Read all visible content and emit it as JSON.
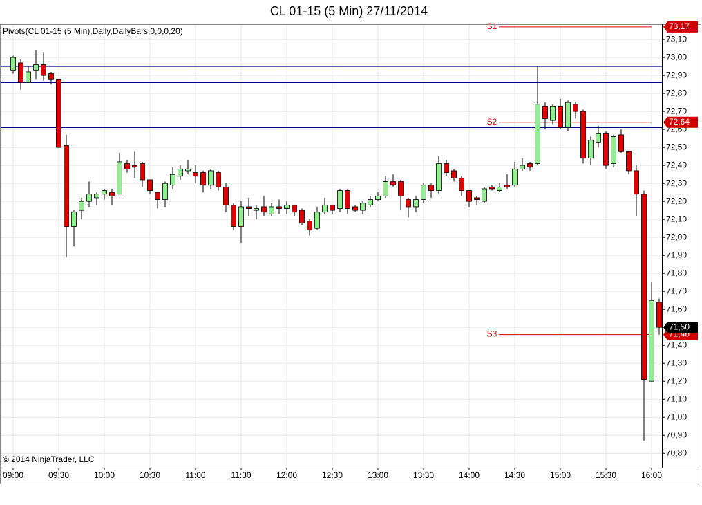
{
  "chart_data": {
    "type": "candlestick",
    "title": "CL 01-15 (5 Min)  27/11/2014",
    "subtitle": "Pivots(CL 01-15 (5 Min),Daily,DailyBars,0,0,0,20)",
    "annotation": "© 2014 NinjaTrader, LLC",
    "categories": [
      "09:00",
      null,
      null,
      null,
      null,
      null,
      "09:30",
      null,
      null,
      null,
      null,
      null,
      "10:00",
      null,
      null,
      null,
      null,
      null,
      "10:30",
      null,
      null,
      null,
      null,
      null,
      "11:00",
      null,
      null,
      null,
      null,
      null,
      "11:30",
      null,
      null,
      null,
      null,
      null,
      "12:00",
      null,
      null,
      null,
      null,
      null,
      "12:30",
      null,
      null,
      null,
      null,
      null,
      "13:00",
      null,
      null,
      null,
      null,
      null,
      "13:30",
      null,
      null,
      null,
      null,
      null,
      "14:00",
      null,
      null,
      null,
      null,
      null,
      "14:30",
      null,
      null,
      null,
      null,
      null,
      "15:00",
      null,
      null,
      null,
      null,
      null,
      "15:30",
      null,
      null,
      null,
      null,
      null,
      "16:00",
      null
    ],
    "open": [
      72.93,
      72.97,
      72.86,
      72.93,
      72.96,
      72.91,
      72.88,
      72.51,
      72.06,
      72.15,
      72.2,
      72.22,
      72.24,
      72.25,
      72.24,
      72.41,
      72.4,
      72.41,
      72.32,
      72.25,
      72.21,
      72.29,
      72.34,
      72.37,
      72.36,
      72.36,
      72.29,
      72.36,
      72.28,
      72.18,
      72.06,
      72.17,
      72.15,
      72.17,
      72.13,
      72.17,
      72.16,
      72.18,
      72.15,
      72.09,
      72.05,
      72.14,
      72.18,
      72.16,
      72.26,
      72.17,
      72.15,
      72.18,
      72.21,
      72.23,
      72.31,
      72.31,
      72.21,
      72.17,
      72.21,
      72.29,
      72.26,
      72.41,
      72.37,
      72.33,
      72.26,
      72.22,
      72.2,
      72.28,
      72.26,
      72.29,
      72.29,
      72.38,
      72.41,
      72.41,
      72.73,
      72.65,
      72.73,
      72.61,
      72.74,
      72.7,
      72.44,
      72.53,
      72.58,
      72.41,
      72.57,
      72.48,
      72.37,
      72.24,
      71.2,
      71.64
    ],
    "high": [
      73.01,
      72.99,
      72.95,
      73.04,
      73.03,
      72.92,
      72.88,
      72.57,
      72.15,
      72.22,
      72.31,
      72.25,
      72.27,
      72.27,
      72.47,
      72.43,
      72.48,
      72.42,
      72.32,
      72.25,
      72.31,
      72.39,
      72.4,
      72.43,
      72.4,
      72.37,
      72.38,
      72.37,
      72.3,
      72.19,
      72.2,
      72.22,
      72.18,
      72.23,
      72.19,
      72.21,
      72.2,
      72.18,
      72.16,
      72.1,
      72.17,
      72.22,
      72.18,
      72.27,
      72.27,
      72.18,
      72.2,
      72.23,
      72.25,
      72.34,
      72.35,
      72.32,
      72.22,
      72.23,
      72.3,
      72.3,
      72.45,
      72.43,
      72.38,
      72.34,
      72.26,
      72.23,
      72.28,
      72.29,
      72.3,
      72.35,
      72.42,
      72.44,
      72.42,
      72.95,
      72.75,
      72.74,
      72.77,
      72.76,
      72.75,
      72.71,
      72.56,
      72.62,
      72.59,
      72.57,
      72.6,
      72.48,
      72.4,
      72.26,
      71.75,
      71.66
    ],
    "low": [
      72.91,
      72.82,
      72.86,
      72.88,
      72.87,
      72.85,
      72.5,
      71.89,
      71.95,
      72.1,
      72.17,
      72.18,
      72.21,
      72.18,
      72.24,
      72.36,
      72.33,
      72.28,
      72.24,
      72.16,
      72.17,
      72.27,
      72.32,
      72.35,
      72.3,
      72.25,
      72.27,
      72.26,
      72.14,
      72.04,
      71.97,
      72.12,
      72.1,
      72.12,
      72.12,
      72.13,
      72.13,
      72.12,
      72.07,
      72.01,
      72.04,
      72.13,
      72.13,
      72.14,
      72.13,
      72.14,
      72.13,
      72.17,
      72.2,
      72.22,
      72.28,
      72.15,
      72.11,
      72.14,
      72.19,
      72.22,
      72.24,
      72.34,
      72.31,
      72.23,
      72.17,
      72.18,
      72.19,
      72.26,
      72.25,
      72.27,
      72.28,
      72.37,
      72.37,
      72.4,
      72.6,
      72.63,
      72.6,
      72.59,
      72.66,
      72.41,
      72.4,
      72.5,
      72.38,
      72.39,
      72.47,
      72.35,
      72.12,
      70.87,
      71.2,
      71.46
    ],
    "close": [
      73.0,
      72.86,
      72.92,
      72.96,
      72.9,
      72.88,
      72.5,
      72.06,
      72.14,
      72.2,
      72.24,
      72.24,
      72.26,
      72.23,
      72.42,
      72.38,
      72.39,
      72.32,
      72.26,
      72.21,
      72.3,
      72.35,
      72.38,
      72.38,
      72.34,
      72.29,
      72.37,
      72.28,
      72.18,
      72.06,
      72.17,
      72.16,
      72.16,
      72.14,
      72.17,
      72.16,
      72.18,
      72.14,
      72.08,
      72.04,
      72.14,
      72.18,
      72.15,
      72.26,
      72.16,
      72.15,
      72.19,
      72.21,
      72.23,
      72.31,
      72.29,
      72.23,
      72.17,
      72.21,
      72.29,
      72.26,
      72.41,
      72.36,
      72.33,
      72.26,
      72.2,
      72.21,
      72.27,
      72.27,
      72.28,
      72.28,
      72.38,
      72.4,
      72.39,
      72.74,
      72.66,
      72.73,
      72.61,
      72.75,
      72.7,
      72.44,
      72.54,
      72.58,
      72.4,
      72.56,
      72.48,
      72.37,
      72.24,
      71.21,
      71.65,
      71.5
    ],
    "up_color": "#90ee90",
    "down_color": "#e00000",
    "ylim": [
      70.72,
      73.185
    ],
    "yticks": [
      {
        "value": 70.8,
        "label": "70,80"
      },
      {
        "value": 70.9,
        "label": "70,90"
      },
      {
        "value": 71.0,
        "label": "71,00"
      },
      {
        "value": 71.1,
        "label": "71,10"
      },
      {
        "value": 71.2,
        "label": "71,20"
      },
      {
        "value": 71.3,
        "label": "71,30"
      },
      {
        "value": 71.4,
        "label": "71,40"
      },
      {
        "value": 71.5,
        "label": "71,50"
      },
      {
        "value": 71.6,
        "label": "71,60"
      },
      {
        "value": 71.7,
        "label": "71,70"
      },
      {
        "value": 71.8,
        "label": "71,80"
      },
      {
        "value": 71.9,
        "label": "71,90"
      },
      {
        "value": 72.0,
        "label": "72,00"
      },
      {
        "value": 72.1,
        "label": "72,10"
      },
      {
        "value": 72.2,
        "label": "72,20"
      },
      {
        "value": 72.3,
        "label": "72,30"
      },
      {
        "value": 72.4,
        "label": "72,40"
      },
      {
        "value": 72.5,
        "label": "72,50"
      },
      {
        "value": 72.6,
        "label": "72,60"
      },
      {
        "value": 72.7,
        "label": "72,70"
      },
      {
        "value": 72.8,
        "label": "72,80"
      },
      {
        "value": 72.9,
        "label": "72,90"
      },
      {
        "value": 73.0,
        "label": "73,00"
      },
      {
        "value": 73.1,
        "label": "73,10"
      }
    ],
    "grid": true,
    "levels": {
      "color": "#000080",
      "values": [
        72.95,
        72.86,
        72.61
      ]
    },
    "pivots": {
      "color": "#d00000",
      "items": [
        {
          "name": "S1",
          "value": 73.17,
          "label": "73,17"
        },
        {
          "name": "S2",
          "value": 72.64,
          "label": "72,64"
        },
        {
          "name": "S3",
          "value": 71.46,
          "label": "71,46"
        }
      ]
    },
    "last": {
      "value": 71.5,
      "label": "71,50",
      "color": "#000000"
    }
  }
}
